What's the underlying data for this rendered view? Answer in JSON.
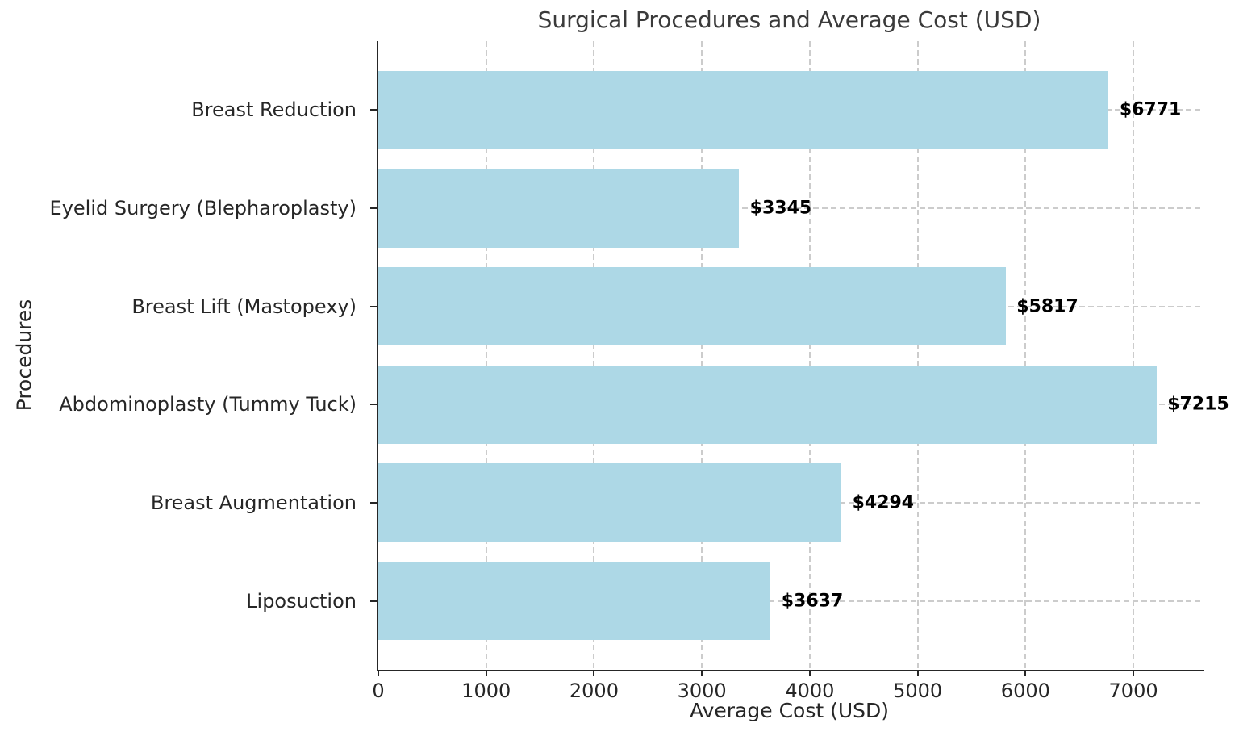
{
  "chart_data": {
    "type": "bar",
    "orientation": "horizontal",
    "title": "Surgical Procedures and Average Cost (USD)",
    "xlabel": "Average Cost (USD)",
    "ylabel": "Procedures",
    "categories": [
      "Breast Reduction",
      "Eyelid Surgery (Blepharoplasty)",
      "Breast Lift (Mastopexy)",
      "Abdominoplasty (Tummy Tuck)",
      "Breast Augmentation",
      "Liposuction"
    ],
    "values": [
      6771,
      3345,
      5817,
      7215,
      4294,
      3637
    ],
    "data_labels": [
      "$6771",
      "$3345",
      "$5817",
      "$7215",
      "$4294",
      "$3637"
    ],
    "x_ticks": [
      "0",
      "1000",
      "2000",
      "3000",
      "4000",
      "5000",
      "6000",
      "7000"
    ],
    "x_tick_values": [
      0,
      1000,
      2000,
      3000,
      4000,
      5000,
      6000,
      7000
    ],
    "xlim": [
      0,
      7650
    ],
    "grid": "dashed",
    "legend": "none",
    "bar_color": "#ADD8E6",
    "grid_color": "#cccccc",
    "value_label_color": "#000000",
    "axis_color": "#262626",
    "title_color": "#3a3a3a"
  }
}
